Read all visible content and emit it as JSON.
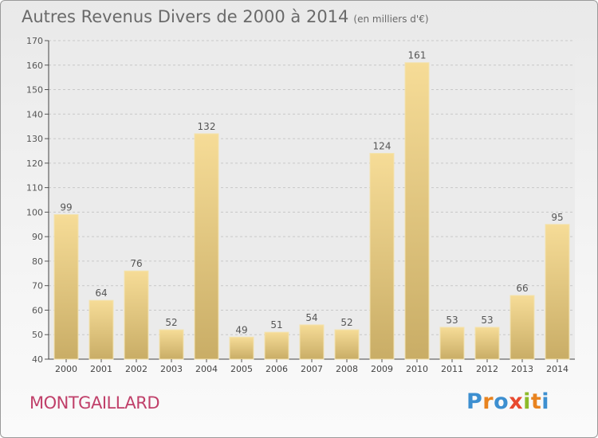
{
  "header": {
    "title": "Autres Revenus Divers de 2000 à 2014",
    "subtitle": "(en milliers d'€)"
  },
  "footer": {
    "commune": "MONTGAILLARD",
    "logo_text": "Proxiti"
  },
  "colors": {
    "bar_light": "#f6dc97",
    "bar_dark": "#c9ad66",
    "commune_text": "#c0406a",
    "logo_letters": [
      "#3d8fd0",
      "#e8831f",
      "#3d8fd0",
      "#e84a30",
      "#8dbb2a",
      "#e8831f",
      "#3d8fd0"
    ]
  },
  "chart_data": {
    "type": "bar",
    "categories": [
      "2000",
      "2001",
      "2002",
      "2003",
      "2004",
      "2005",
      "2006",
      "2007",
      "2008",
      "2009",
      "2010",
      "2011",
      "2012",
      "2013",
      "2014"
    ],
    "values": [
      99,
      64,
      76,
      52,
      132,
      49,
      51,
      54,
      52,
      124,
      161,
      53,
      53,
      66,
      95
    ],
    "ylim": [
      40,
      170
    ],
    "yticks": [
      40,
      50,
      60,
      70,
      80,
      90,
      100,
      110,
      120,
      130,
      140,
      150,
      160,
      170
    ],
    "grid": true
  }
}
